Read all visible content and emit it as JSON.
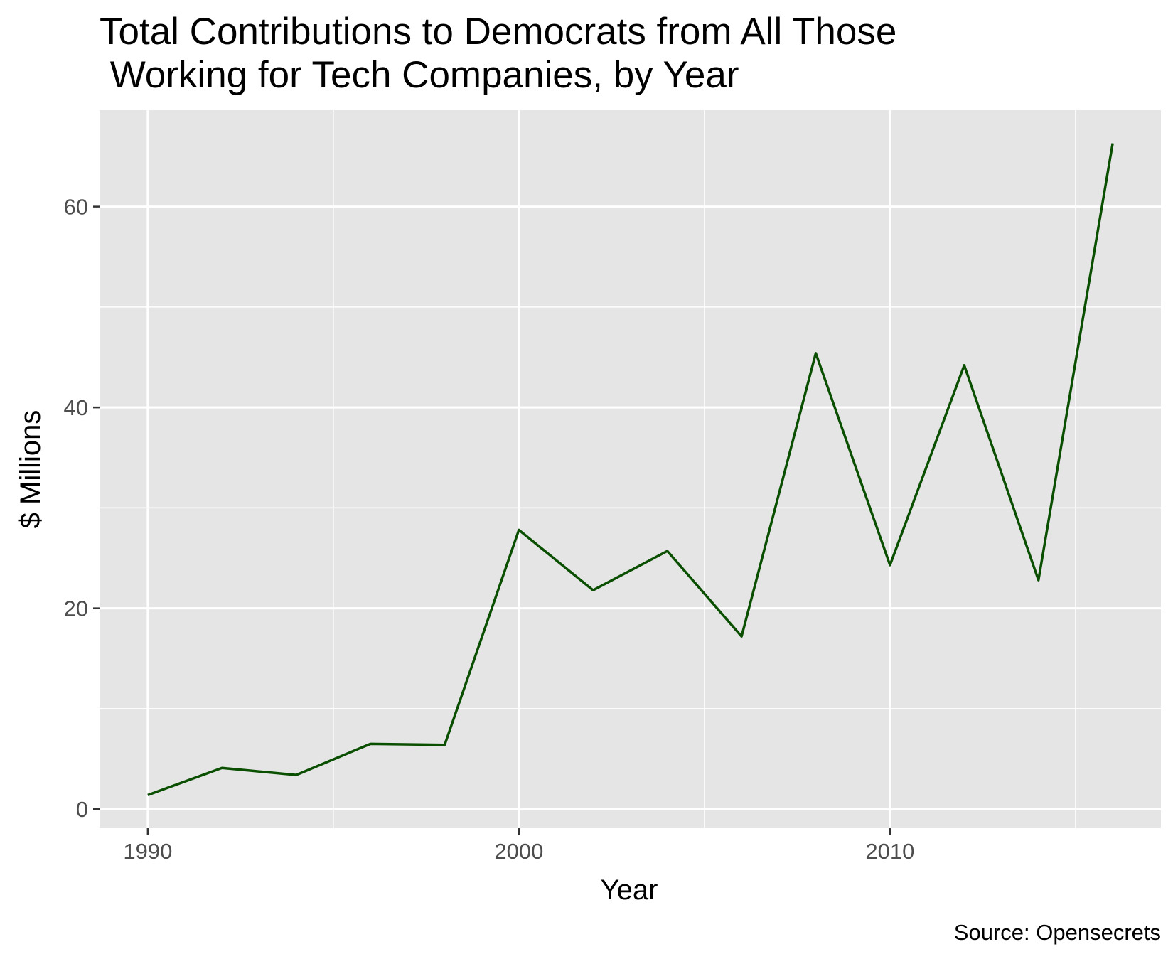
{
  "chart_data": {
    "type": "line",
    "title_lines": [
      "Total Contributions to Democrats from All Those",
      " Working for Tech Companies, by Year"
    ],
    "xlabel": "Year",
    "ylabel": "$ Millions",
    "caption": "Source: Opensecrets",
    "x": [
      1990,
      1992,
      1994,
      1996,
      1998,
      2000,
      2002,
      2004,
      2006,
      2008,
      2010,
      2012,
      2014,
      2016
    ],
    "series": [
      {
        "values": [
          1.4,
          4.1,
          3.4,
          6.5,
          6.4,
          27.8,
          21.8,
          25.7,
          17.2,
          45.4,
          24.3,
          44.2,
          22.8,
          66.3
        ],
        "color": "#0a4f00"
      }
    ],
    "xlim": [
      1988.7,
      2017.3
    ],
    "ylim": [
      -1.9,
      69.6
    ],
    "x_ticks": [
      1990,
      2000,
      2010
    ],
    "x_tick_labels": [
      "1990",
      "2000",
      "2010"
    ],
    "x_minor_ticks": [
      1995,
      2005,
      2015
    ],
    "y_ticks": [
      0,
      20,
      40,
      60
    ],
    "y_tick_labels": [
      "0",
      "20",
      "40",
      "60"
    ],
    "y_minor_ticks": [
      10,
      30,
      50
    ],
    "grid": true,
    "legend": "none",
    "panel_color": "#e5e5e5",
    "grid_color": "#ffffff"
  }
}
